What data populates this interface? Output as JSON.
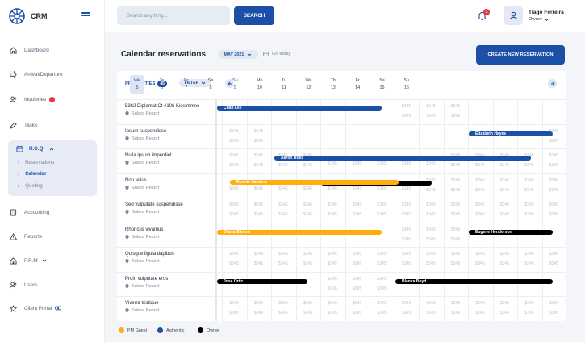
{
  "app": {
    "name": "CRM"
  },
  "sidebar": {
    "items": [
      {
        "label": "Dashboard",
        "icon": "home-icon"
      },
      {
        "label": "Arrival/Departure",
        "icon": "arrow-icon"
      },
      {
        "label": "Inquieries",
        "icon": "users-icon",
        "badge": "!"
      },
      {
        "label": "Tasks",
        "icon": "pen-icon"
      },
      {
        "label": "R.C.Q",
        "icon": "calendar-icon"
      },
      {
        "label": "Accounting",
        "icon": "calculator-icon"
      },
      {
        "label": "Reports",
        "icon": "warning-icon"
      },
      {
        "label": "P.R.M",
        "icon": "house-icon"
      },
      {
        "label": "Users",
        "icon": "users-icon"
      },
      {
        "label": "Client Portal",
        "icon": "star-icon"
      }
    ],
    "rcq_sub": [
      "Reservations",
      "Calendar",
      "Quoting"
    ]
  },
  "header": {
    "search_placeholder": "Search anything...",
    "search_button": "SEARCH",
    "notification_count": "3",
    "user_name": "Tiago Ferreira",
    "user_role": "Owner"
  },
  "page": {
    "title": "Calendar reservations",
    "month": "MAY 2021",
    "goto_today": "Go today",
    "create_button": "CREATE NEW RESERVATION"
  },
  "calendar": {
    "properties_label": "PROPERTIES",
    "properties_count": "45",
    "filter_label": "FILTER",
    "days": [
      {
        "dow": "We",
        "num": "5"
      },
      {
        "dow": "Te",
        "num": "6"
      },
      {
        "dow": "Fr",
        "num": "7"
      },
      {
        "dow": "Sa",
        "num": "8"
      },
      {
        "dow": "Su",
        "num": "9"
      },
      {
        "dow": "Mo",
        "num": "10"
      },
      {
        "dow": "Tu",
        "num": "11"
      },
      {
        "dow": "We",
        "num": "12"
      },
      {
        "dow": "Th",
        "num": "13"
      },
      {
        "dow": "Fr",
        "num": "14"
      },
      {
        "dow": "Sa",
        "num": "15"
      },
      {
        "dow": "Su",
        "num": "16"
      }
    ],
    "price": "$345",
    "properties": [
      {
        "name": "5362 Diplomat Ct #106 Kissimmee",
        "location": "Solara Resort"
      },
      {
        "name": "Ipsum suspendisse",
        "location": "Solara Resort"
      },
      {
        "name": "Nulla ipsum imperdiet",
        "location": "Solara Resort"
      },
      {
        "name": "Non tellus",
        "location": "Solara Resort"
      },
      {
        "name": "Sed vulputate suspendisse",
        "location": "Solara Resort"
      },
      {
        "name": "Rhoncus vivamus",
        "location": "Solara Resort"
      },
      {
        "name": "Quisque ligula dapibus",
        "location": "Solara Resort"
      },
      {
        "name": "Proin vulputate eros",
        "location": "Solara Resort"
      },
      {
        "name": "Viverra tristique",
        "location": "Solara Resort"
      }
    ],
    "reservations": [
      {
        "guest": "Chad Lee",
        "type": "blue",
        "row": 0
      },
      {
        "guest": "Elizabeth Hayes",
        "type": "blue",
        "row": 0
      },
      {
        "guest": "Aaron Ross",
        "type": "blue",
        "row": 1
      },
      {
        "guest": "Vincent Griffin",
        "type": "black",
        "row": 2
      },
      {
        "guest": "Ronnie Sanders",
        "type": "orange",
        "row": 3
      },
      {
        "guest": "Debra Gibson",
        "type": "orange",
        "row": 5
      },
      {
        "guest": "Eugene Henderson",
        "type": "black",
        "row": 5
      },
      {
        "guest": "Jose Ortiz",
        "type": "black",
        "row": 7
      },
      {
        "guest": "Blanca Boyd",
        "type": "black",
        "row": 7
      }
    ]
  },
  "legend": [
    {
      "label": "PM Guest",
      "color": "#ffae0b"
    },
    {
      "label": "Authentic",
      "color": "#1b4fa8"
    },
    {
      "label": "Owner",
      "color": "#000000"
    }
  ]
}
